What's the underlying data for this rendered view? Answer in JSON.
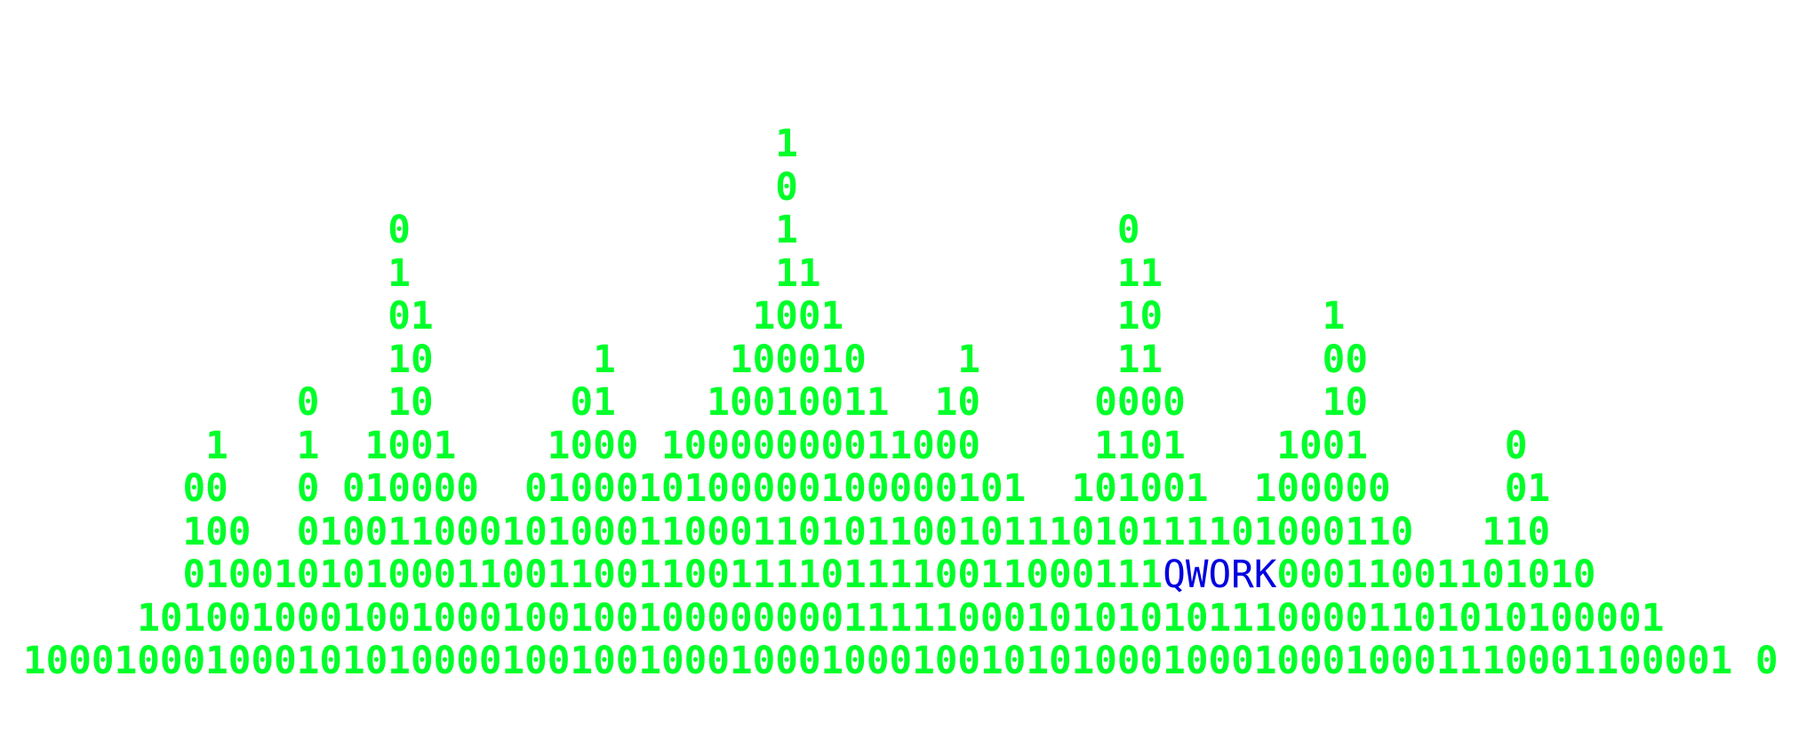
{
  "art": {
    "rows": [
      "                                 1",
      "                                 0",
      "                0                1              0",
      "                1                11             11",
      "                01              1001            10       1",
      "                10       1     100010    1      11       00",
      "            0   10      01    10010011  10     0000      10",
      "        1   1  1001    1000 10000000011000     1101    1001      0",
      "       00   0 010000  0100010100000100000101  101001  100000     01",
      "       100  0100110001010001100011010110010111010111101000110   110",
      "       0100101010001100110011001111011110011000111",
      "     1010010001001000100100100000000111110001010101011100001101010100001",
      "100010001000101010000100100100010001000100101010001000100010001110001100001 0"
    ],
    "row10_highlight": "QWORK",
    "row10_tail": "00011001101010"
  },
  "colors": {
    "digits": "#00ff2a",
    "highlight": "#0000e0",
    "background": "#ffffff"
  }
}
